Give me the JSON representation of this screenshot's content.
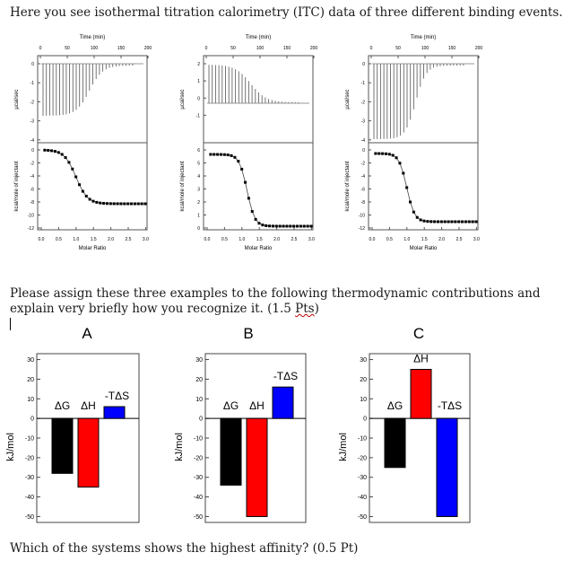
{
  "intro_text": "Here you see isothermal titration calorimetry (ITC) data of three different binding events.",
  "question1": {
    "text": "Please assign these three examples to the following thermodynamic contributions and explain very briefly how you recognize it. (1.5 ",
    "pts_word": "Pts",
    "tail": ")"
  },
  "question2": "Which of the systems shows the highest affinity?  (0.5 Pt)",
  "itc": {
    "time_label": "Time (min)",
    "time_ticks": [
      "0",
      "50",
      "100",
      "150",
      "200"
    ],
    "upper_ylabel": "µcal/sec",
    "lower_ylabel": "kcal/mole of injectant",
    "xlabel": "Molar Ratio",
    "ratio_ticks": [
      "0.0",
      "0.5",
      "1.0",
      "1.5",
      "2.0",
      "2.5",
      "3.0"
    ],
    "panels": [
      {
        "upper_ticks": [
          "0",
          "-1",
          "-2",
          "-3",
          "-4"
        ],
        "lower_ticks": [
          "0",
          "-2",
          "-4",
          "-6",
          "-8",
          "-10",
          "-12"
        ]
      },
      {
        "upper_ticks": [
          "2",
          "1",
          "0",
          "-1"
        ],
        "lower_ticks": [
          "6",
          "5",
          "4",
          "3",
          "2",
          "1",
          "0"
        ]
      },
      {
        "upper_ticks": [
          "0",
          "-1",
          "-2",
          "-3",
          "-4"
        ],
        "lower_ticks": [
          "0",
          "-2",
          "-4",
          "-6",
          "-8",
          "-10",
          "-12"
        ]
      }
    ]
  },
  "chart_data": [
    {
      "type": "bar",
      "title": "A",
      "categories": [
        "ΔG",
        "ΔH",
        "-TΔS"
      ],
      "values": [
        -28,
        -35,
        6
      ],
      "colors": [
        "#000000",
        "#ff0000",
        "#0000ff"
      ],
      "ylabel": "kJ/mol",
      "ylim": [
        -53,
        33
      ],
      "yticks": [
        "30",
        "20",
        "10",
        "0",
        "-10",
        "-20",
        "-30",
        "-40",
        "-50"
      ]
    },
    {
      "type": "bar",
      "title": "B",
      "categories": [
        "ΔG",
        "ΔH",
        "-TΔS"
      ],
      "values": [
        -34,
        -50,
        16
      ],
      "colors": [
        "#000000",
        "#ff0000",
        "#0000ff"
      ],
      "ylabel": "kJ/mol",
      "ylim": [
        -53,
        33
      ],
      "yticks": [
        "30",
        "20",
        "10",
        "0",
        "-10",
        "-20",
        "-30",
        "-40",
        "-50"
      ]
    },
    {
      "type": "bar",
      "title": "C",
      "categories": [
        "ΔG",
        "ΔH",
        "-TΔS"
      ],
      "values": [
        -25,
        25,
        -50
      ],
      "colors": [
        "#000000",
        "#ff0000",
        "#0000ff"
      ],
      "ylabel": "kJ/mol",
      "ylim": [
        -53,
        33
      ],
      "yticks": [
        "30",
        "20",
        "10",
        "0",
        "-10",
        "-20",
        "-30",
        "-40",
        "-50"
      ]
    }
  ]
}
